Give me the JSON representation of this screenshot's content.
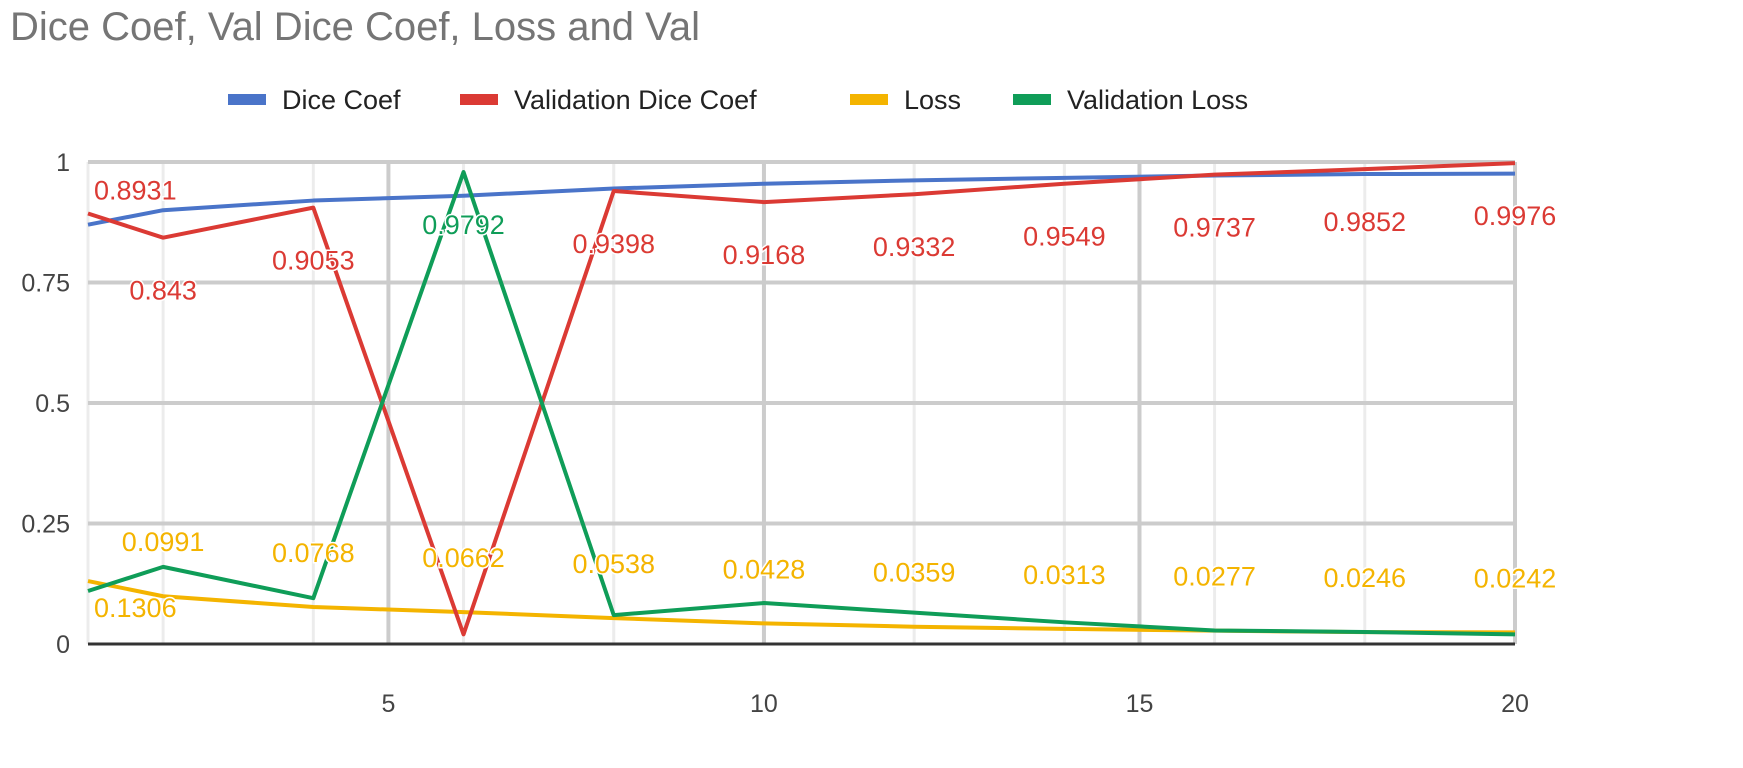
{
  "chart_data": {
    "type": "line",
    "title": "Dice Coef, Val Dice Coef, Loss and Val",
    "xlabel": "",
    "ylabel": "",
    "xlim": [
      1,
      20
    ],
    "ylim": [
      0,
      1
    ],
    "x_ticks": [
      5,
      10,
      15,
      20
    ],
    "y_ticks": [
      0,
      0.25,
      0.5,
      0.75,
      1
    ],
    "y_tick_labels": [
      "0",
      "0.25",
      "0.5",
      "0.75",
      "1"
    ],
    "grid": true,
    "legend_position": "top",
    "x": [
      1,
      2,
      4,
      6,
      8,
      10,
      12,
      14,
      16,
      18,
      20
    ],
    "series": [
      {
        "name": "Dice Coef",
        "color": "#4a74c9",
        "values": [
          0.87,
          0.9,
          0.92,
          0.93,
          0.945,
          0.955,
          0.962,
          0.967,
          0.972,
          0.975,
          0.976
        ],
        "labels": []
      },
      {
        "name": "Validation Dice Coef",
        "color": "#db3a34",
        "values": [
          0.8931,
          0.843,
          0.9053,
          0.02,
          0.9398,
          0.9168,
          0.9332,
          0.9549,
          0.9737,
          0.9852,
          0.9976
        ],
        "labels": [
          "0.8931",
          "0.843",
          "0.9053",
          "",
          "0.9398",
          "0.9168",
          "0.9332",
          "0.9549",
          "0.9737",
          "0.9852",
          "0.9976"
        ]
      },
      {
        "name": "Loss",
        "color": "#f4b400",
        "values": [
          0.1306,
          0.0991,
          0.0768,
          0.0662,
          0.0538,
          0.0428,
          0.0359,
          0.0313,
          0.0277,
          0.0246,
          0.0242
        ],
        "labels": [
          "0.1306",
          "0.0991",
          "0.0768",
          "0.0662",
          "0.0538",
          "0.0428",
          "0.0359",
          "0.0313",
          "0.0277",
          "0.0246",
          "0.0242"
        ]
      },
      {
        "name": "Validation Loss",
        "color": "#0f9d58",
        "values": [
          0.11,
          0.16,
          0.095,
          0.9792,
          0.06,
          0.085,
          0.065,
          0.045,
          0.028,
          0.025,
          0.02
        ],
        "labels": [
          "",
          "",
          "",
          "0.9792",
          "",
          "",
          "",
          "",
          "",
          "",
          ""
        ]
      }
    ]
  }
}
